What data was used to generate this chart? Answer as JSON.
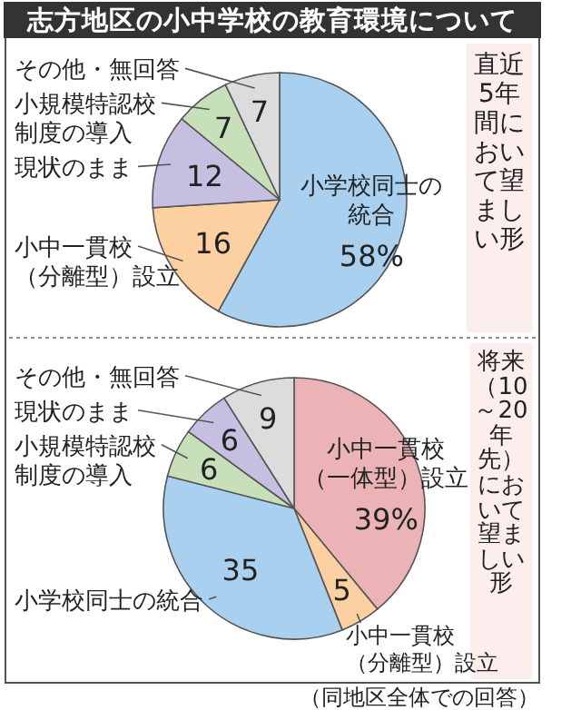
{
  "chart_data": [
    {
      "type": "pie",
      "title": "志方地区の小中学校の教育環境について",
      "subtitle": "直近5年間において望ましい形",
      "categories": [
        "小学校同士の統合",
        "小中一貫校（分離型）設立",
        "現状のまま",
        "小規模特認校制度の導入",
        "その他・無回答"
      ],
      "values": [
        58,
        16,
        12,
        7,
        7
      ],
      "colors": [
        "#a9d1ef",
        "#fdd0a2",
        "#c6bfe2",
        "#c7e0ba",
        "#dcdcdc"
      ],
      "value_labels": [
        "58%",
        "16",
        "12",
        "7",
        "7"
      ]
    },
    {
      "type": "pie",
      "subtitle": "将来（10～20年先）において望ましい形",
      "categories": [
        "小中一貫校（一体型）設立",
        "小中一貫校（分離型）設立",
        "小学校同士の統合",
        "小規模特認校制度の導入",
        "現状のまま",
        "その他・無回答"
      ],
      "values": [
        39,
        5,
        35,
        6,
        6,
        9
      ],
      "colors": [
        "#ebb3b5",
        "#fdd0a2",
        "#a9d1ef",
        "#c7e0ba",
        "#c6bfe2",
        "#dcdcdc"
      ],
      "value_labels": [
        "39%",
        "5",
        "35",
        "6",
        "6",
        "9"
      ],
      "annotations": [
        "（同地区全体での回答）"
      ]
    }
  ]
}
